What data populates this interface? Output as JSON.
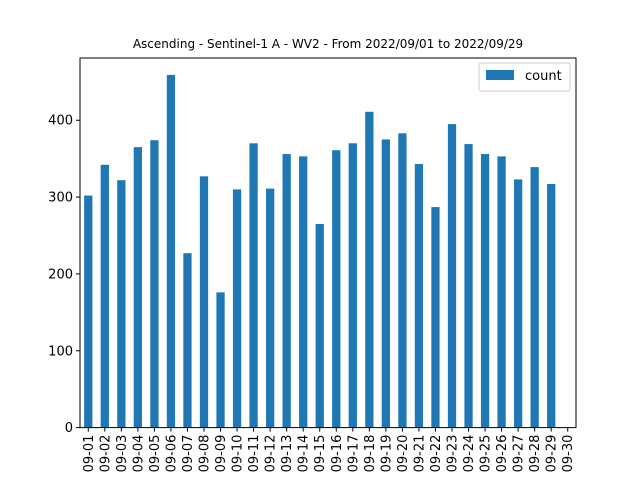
{
  "chart_data": {
    "type": "bar",
    "title": "Ascending - Sentinel-1 A - WV2 - From 2022/09/01 to 2022/09/29",
    "xlabel": "",
    "ylabel": "",
    "categories": [
      "09-01",
      "09-02",
      "09-03",
      "09-04",
      "09-05",
      "09-06",
      "09-07",
      "09-08",
      "09-09",
      "09-10",
      "09-11",
      "09-12",
      "09-13",
      "09-14",
      "09-15",
      "09-16",
      "09-17",
      "09-18",
      "09-19",
      "09-20",
      "09-21",
      "09-22",
      "09-23",
      "09-24",
      "09-25",
      "09-26",
      "09-27",
      "09-28",
      "09-29",
      "09-30"
    ],
    "series": [
      {
        "name": "count",
        "color": "#1f77b4",
        "values": [
          302,
          342,
          322,
          365,
          374,
          459,
          227,
          327,
          176,
          310,
          370,
          311,
          356,
          353,
          265,
          361,
          370,
          411,
          375,
          383,
          343,
          287,
          395,
          369,
          356,
          353,
          323,
          339,
          317,
          0
        ]
      }
    ],
    "ylim": [
      0,
      481
    ],
    "yticks": [
      0,
      100,
      200,
      300,
      400
    ],
    "legend": "top-right",
    "grid": false
  }
}
